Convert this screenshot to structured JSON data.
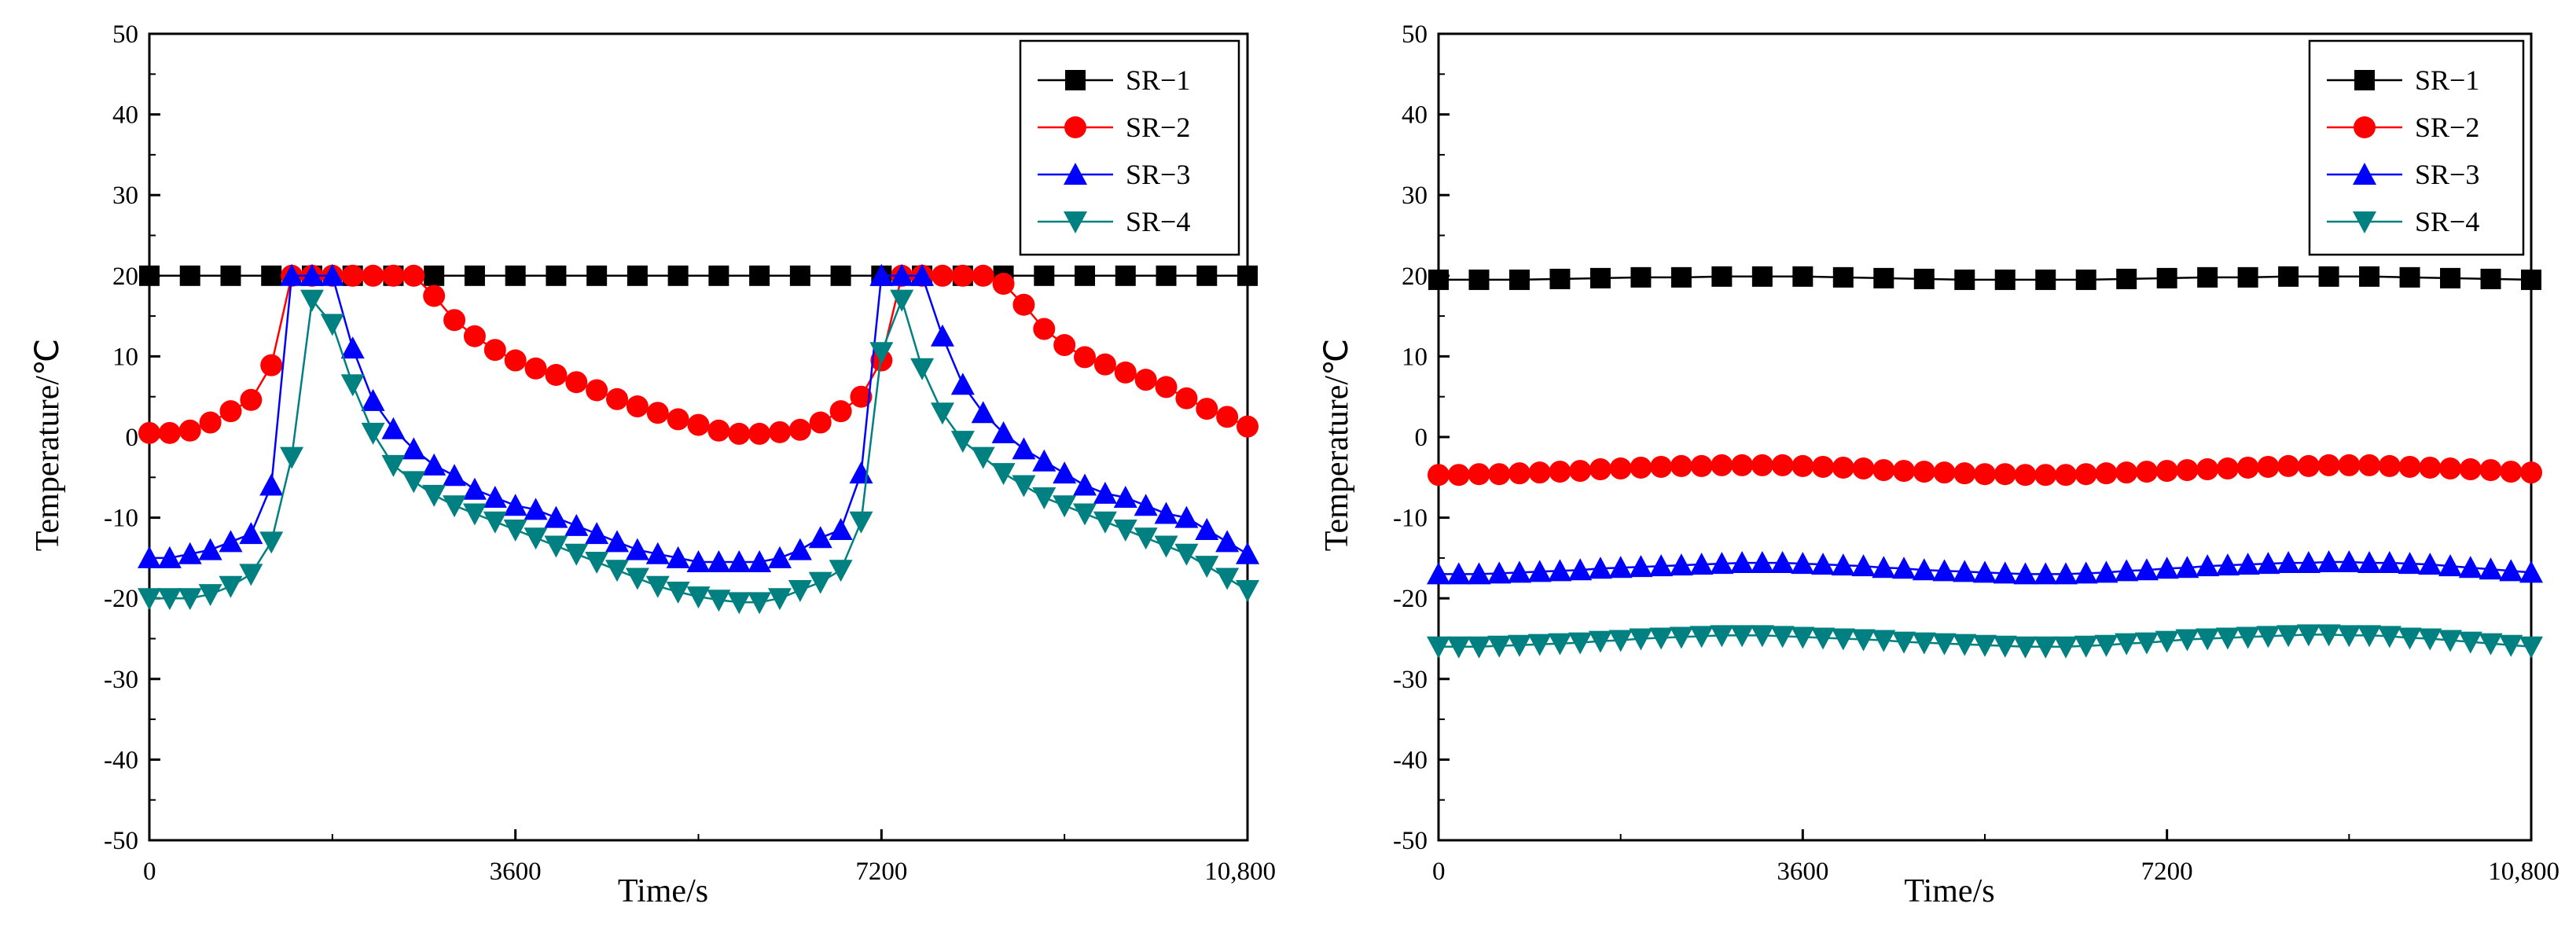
{
  "chart_data": [
    {
      "type": "line",
      "panel": "left",
      "title": "",
      "xlabel": "Time/s",
      "ylabel": "Temperature/℃",
      "xlim": [
        0,
        10800
      ],
      "ylim": [
        -50,
        50
      ],
      "xticks": [
        0,
        3600,
        7200,
        10800
      ],
      "xtick_labels": [
        "0",
        "3600",
        "7200",
        "10,800"
      ],
      "yticks": [
        -50,
        -40,
        -30,
        -20,
        -10,
        0,
        10,
        20,
        30,
        40,
        50
      ],
      "ytick_labels": [
        "-50",
        "-40",
        "-30",
        "-20",
        "-10",
        "0",
        "10",
        "20",
        "30",
        "40",
        "50"
      ],
      "legend_position": "top-right",
      "series": [
        {
          "name": "SR−1",
          "color": "#000000",
          "marker": "square",
          "x": [
            0,
            400,
            800,
            1200,
            1600,
            2000,
            2400,
            2800,
            3200,
            3600,
            4000,
            4400,
            4800,
            5200,
            5600,
            6000,
            6400,
            6800,
            7200,
            7600,
            8000,
            8400,
            8800,
            9200,
            9600,
            10000,
            10400,
            10800
          ],
          "y": [
            20,
            20,
            20,
            20,
            20,
            20,
            20,
            20,
            20,
            20,
            20,
            20,
            20,
            20,
            20,
            20,
            20,
            20,
            20,
            20,
            20,
            20,
            20,
            20,
            20,
            20,
            20,
            20
          ]
        },
        {
          "name": "SR−2",
          "color": "#ff0000",
          "marker": "circle",
          "x": [
            0,
            200,
            400,
            600,
            800,
            1000,
            1200,
            1400,
            1600,
            1800,
            2000,
            2200,
            2400,
            2600,
            2800,
            3000,
            3200,
            3400,
            3600,
            3800,
            4000,
            4200,
            4400,
            4600,
            4800,
            5000,
            5200,
            5400,
            5600,
            5800,
            6000,
            6200,
            6400,
            6600,
            6800,
            7000,
            7200,
            7400,
            7600,
            7800,
            8000,
            8200,
            8400,
            8600,
            8800,
            9000,
            9200,
            9400,
            9600,
            9800,
            10000,
            10200,
            10400,
            10600,
            10800
          ],
          "y": [
            0.5,
            0.5,
            0.8,
            1.8,
            3.2,
            4.6,
            8.9,
            20,
            20,
            20,
            20,
            20,
            20,
            20,
            17.5,
            14.5,
            12.5,
            10.8,
            9.5,
            8.5,
            7.7,
            6.8,
            5.8,
            4.7,
            3.8,
            3.0,
            2.2,
            1.5,
            0.8,
            0.4,
            0.4,
            0.6,
            0.9,
            1.8,
            3.2,
            5.0,
            9.5,
            20,
            20,
            20,
            20,
            20,
            19,
            16.4,
            13.4,
            11.4,
            9.9,
            9.0,
            8.0,
            7.1,
            6.2,
            4.8,
            3.5,
            2.5,
            1.3
          ]
        },
        {
          "name": "SR−3",
          "color": "#0000ff",
          "marker": "triangle-up",
          "x": [
            0,
            200,
            400,
            600,
            800,
            1000,
            1200,
            1400,
            1600,
            1800,
            2000,
            2200,
            2400,
            2600,
            2800,
            3000,
            3200,
            3400,
            3600,
            3800,
            4000,
            4200,
            4400,
            4600,
            4800,
            5000,
            5200,
            5400,
            5600,
            5800,
            6000,
            6200,
            6400,
            6600,
            6800,
            7000,
            7200,
            7400,
            7600,
            7800,
            8000,
            8200,
            8400,
            8600,
            8800,
            9000,
            9200,
            9400,
            9600,
            9800,
            10000,
            10200,
            10400,
            10600,
            10800
          ],
          "y": [
            -15,
            -15,
            -14.5,
            -14,
            -13,
            -12,
            -6,
            20,
            20,
            20,
            11,
            4.5,
            1,
            -1.5,
            -3.5,
            -4.8,
            -6.5,
            -7.5,
            -8.5,
            -9,
            -10,
            -11,
            -12,
            -13,
            -14,
            -14.5,
            -15,
            -15.5,
            -15.5,
            -15.5,
            -15.5,
            -15,
            -14,
            -12.5,
            -11.5,
            -4.5,
            20,
            20,
            20,
            12.5,
            6.5,
            3,
            0.5,
            -1.5,
            -3,
            -4.5,
            -6,
            -7,
            -7.5,
            -8.5,
            -9.5,
            -10,
            -11.5,
            -13,
            -14.5
          ]
        },
        {
          "name": "SR−4",
          "color": "#008080",
          "marker": "triangle-down",
          "x": [
            0,
            200,
            400,
            600,
            800,
            1000,
            1200,
            1400,
            1600,
            1800,
            2000,
            2200,
            2400,
            2600,
            2800,
            3000,
            3200,
            3400,
            3600,
            3800,
            4000,
            4200,
            4400,
            4600,
            4800,
            5000,
            5200,
            5400,
            5600,
            5800,
            6000,
            6200,
            6400,
            6600,
            6800,
            7000,
            7200,
            7400,
            7600,
            7800,
            8000,
            8200,
            8400,
            8600,
            8800,
            9000,
            9200,
            9400,
            9600,
            9800,
            10000,
            10200,
            10400,
            10600,
            10800
          ],
          "y": [
            -20,
            -20,
            -20,
            -19.5,
            -18.5,
            -17,
            -13,
            -2.5,
            17,
            14,
            6.5,
            0.5,
            -3.5,
            -5.5,
            -7.2,
            -8.5,
            -9.5,
            -10.5,
            -11.5,
            -12.5,
            -13.5,
            -14.5,
            -15.5,
            -16.5,
            -17.5,
            -18.5,
            -19.2,
            -19.8,
            -20.2,
            -20.5,
            -20.5,
            -20,
            -19,
            -18,
            -16.5,
            -10.5,
            10.5,
            17,
            8.5,
            3,
            -0.5,
            -2.5,
            -4.5,
            -6,
            -7.5,
            -8.5,
            -9.5,
            -10.5,
            -11.5,
            -12.5,
            -13.5,
            -14.5,
            -16,
            -17.5,
            -19
          ]
        }
      ]
    },
    {
      "type": "line",
      "panel": "right",
      "title": "",
      "xlabel": "Time/s",
      "ylabel": "Temperature/℃",
      "xlim": [
        0,
        10800
      ],
      "ylim": [
        -50,
        50
      ],
      "xticks": [
        0,
        3600,
        7200,
        10800
      ],
      "xtick_labels": [
        "0",
        "3600",
        "7200",
        "10,800"
      ],
      "yticks": [
        -50,
        -40,
        -30,
        -20,
        -10,
        0,
        10,
        20,
        30,
        40,
        50
      ],
      "ytick_labels": [
        "-50",
        "-40",
        "-30",
        "-20",
        "-10",
        "0",
        "10",
        "20",
        "30",
        "40",
        "50"
      ],
      "legend_position": "top-right",
      "series": [
        {
          "name": "SR−1",
          "color": "#000000",
          "marker": "square",
          "x": [
            0,
            400,
            800,
            1200,
            1600,
            2000,
            2400,
            2800,
            3200,
            3600,
            4000,
            4400,
            4800,
            5200,
            5600,
            6000,
            6400,
            6800,
            7200,
            7600,
            8000,
            8400,
            8800,
            9200,
            9600,
            10000,
            10400,
            10800
          ],
          "y": [
            19.5,
            19.5,
            19.5,
            19.6,
            19.7,
            19.8,
            19.8,
            19.9,
            19.9,
            19.9,
            19.8,
            19.7,
            19.6,
            19.5,
            19.5,
            19.5,
            19.5,
            19.6,
            19.7,
            19.8,
            19.8,
            19.9,
            19.9,
            19.9,
            19.8,
            19.7,
            19.6,
            19.5
          ]
        },
        {
          "name": "SR−2",
          "color": "#ff0000",
          "marker": "circle",
          "x": [
            0,
            200,
            400,
            600,
            800,
            1000,
            1200,
            1400,
            1600,
            1800,
            2000,
            2200,
            2400,
            2600,
            2800,
            3000,
            3200,
            3400,
            3600,
            3800,
            4000,
            4200,
            4400,
            4600,
            4800,
            5000,
            5200,
            5400,
            5600,
            5800,
            6000,
            6200,
            6400,
            6600,
            6800,
            7000,
            7200,
            7400,
            7600,
            7800,
            8000,
            8200,
            8400,
            8600,
            8800,
            9000,
            9200,
            9400,
            9600,
            9800,
            10000,
            10200,
            10400,
            10600,
            10800
          ],
          "y": [
            -4.7,
            -4.7,
            -4.6,
            -4.6,
            -4.5,
            -4.4,
            -4.3,
            -4.2,
            -4.0,
            -3.9,
            -3.8,
            -3.7,
            -3.6,
            -3.6,
            -3.5,
            -3.5,
            -3.5,
            -3.5,
            -3.6,
            -3.7,
            -3.8,
            -3.9,
            -4.1,
            -4.2,
            -4.3,
            -4.4,
            -4.5,
            -4.6,
            -4.6,
            -4.7,
            -4.7,
            -4.7,
            -4.6,
            -4.5,
            -4.4,
            -4.3,
            -4.2,
            -4.1,
            -4.0,
            -3.9,
            -3.8,
            -3.7,
            -3.6,
            -3.6,
            -3.5,
            -3.5,
            -3.5,
            -3.6,
            -3.7,
            -3.8,
            -3.9,
            -4.0,
            -4.1,
            -4.3,
            -4.4
          ]
        },
        {
          "name": "SR−3",
          "color": "#0000ff",
          "marker": "triangle-up",
          "x": [
            0,
            200,
            400,
            600,
            800,
            1000,
            1200,
            1400,
            1600,
            1800,
            2000,
            2200,
            2400,
            2600,
            2800,
            3000,
            3200,
            3400,
            3600,
            3800,
            4000,
            4200,
            4400,
            4600,
            4800,
            5000,
            5200,
            5400,
            5600,
            5800,
            6000,
            6200,
            6400,
            6600,
            6800,
            7000,
            7200,
            7400,
            7600,
            7800,
            8000,
            8200,
            8400,
            8600,
            8800,
            9000,
            9200,
            9400,
            9600,
            9800,
            10000,
            10200,
            10400,
            10600,
            10800
          ],
          "y": [
            -17,
            -17,
            -17,
            -16.9,
            -16.8,
            -16.7,
            -16.6,
            -16.5,
            -16.3,
            -16.2,
            -16.1,
            -16.0,
            -15.9,
            -15.8,
            -15.7,
            -15.6,
            -15.6,
            -15.6,
            -15.7,
            -15.8,
            -15.9,
            -16.0,
            -16.2,
            -16.3,
            -16.5,
            -16.6,
            -16.7,
            -16.8,
            -16.9,
            -17,
            -17,
            -17,
            -16.9,
            -16.8,
            -16.6,
            -16.5,
            -16.3,
            -16.2,
            -16.0,
            -15.9,
            -15.8,
            -15.7,
            -15.6,
            -15.6,
            -15.5,
            -15.5,
            -15.6,
            -15.6,
            -15.7,
            -15.8,
            -16.0,
            -16.2,
            -16.4,
            -16.6,
            -16.8
          ]
        },
        {
          "name": "SR−4",
          "color": "#008080",
          "marker": "triangle-down",
          "x": [
            0,
            200,
            400,
            600,
            800,
            1000,
            1200,
            1400,
            1600,
            1800,
            2000,
            2200,
            2400,
            2600,
            2800,
            3000,
            3200,
            3400,
            3600,
            3800,
            4000,
            4200,
            4400,
            4600,
            4800,
            5000,
            5200,
            5400,
            5600,
            5800,
            6000,
            6200,
            6400,
            6600,
            6800,
            7000,
            7200,
            7400,
            7600,
            7800,
            8000,
            8200,
            8400,
            8600,
            8800,
            9000,
            9200,
            9400,
            9600,
            9800,
            10000,
            10200,
            10400,
            10600,
            10800
          ],
          "y": [
            -26,
            -26,
            -26,
            -25.9,
            -25.8,
            -25.7,
            -25.6,
            -25.5,
            -25.3,
            -25.2,
            -25.0,
            -24.9,
            -24.8,
            -24.7,
            -24.6,
            -24.6,
            -24.6,
            -24.7,
            -24.8,
            -24.9,
            -25.0,
            -25.1,
            -25.2,
            -25.4,
            -25.5,
            -25.6,
            -25.7,
            -25.8,
            -25.9,
            -26,
            -26,
            -26,
            -25.9,
            -25.8,
            -25.6,
            -25.5,
            -25.3,
            -25.1,
            -25.0,
            -24.9,
            -24.8,
            -24.7,
            -24.6,
            -24.5,
            -24.5,
            -24.6,
            -24.6,
            -24.7,
            -24.9,
            -25.0,
            -25.2,
            -25.4,
            -25.6,
            -25.8,
            -26
          ]
        }
      ]
    }
  ]
}
